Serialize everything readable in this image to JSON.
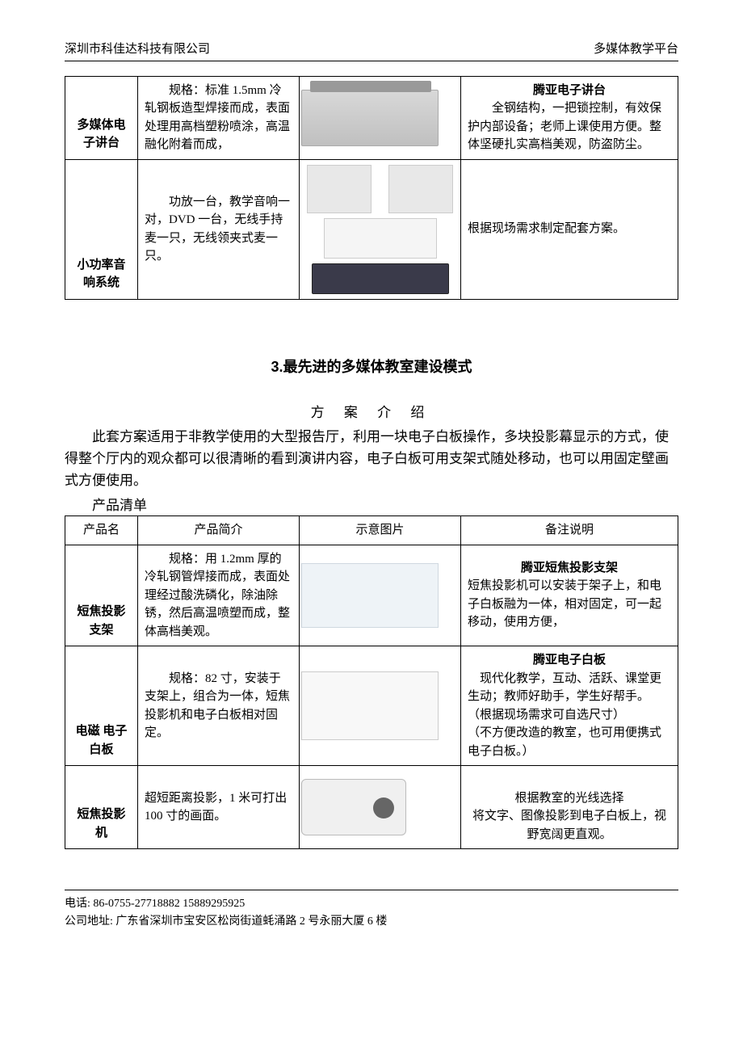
{
  "header": {
    "left": "深圳市科佳达科技有限公司",
    "right": "多媒体教学平台"
  },
  "table1": {
    "rows": [
      {
        "name": "多媒体电子讲台",
        "intro": "规格：标准 1.5mm 冷轧钢板造型焊接而成，表面处理用高档塑粉喷涂，高温融化附着而成，",
        "note_title": "腾亚电子讲台",
        "note_body": "全钢结构，一把锁控制，有效保护内部设备；老师上课使用方便。整体坚硬扎实高档美观，防盗防尘。"
      },
      {
        "name": "小功率音响系统",
        "intro": "功放一台，教学音响一对，DVD 一台，无线手持麦一只，无线领夹式麦一只。",
        "note_title": "",
        "note_body": "根据现场需求制定配套方案。"
      }
    ]
  },
  "section": {
    "title": "3.最先进的多媒体教室建设模式",
    "subtitle": "方 案 介 绍",
    "paragraph": "此套方案适用于非教学使用的大型报告厅，利用一块电子白板操作，多块投影幕显示的方式，使得整个厅内的观众都可以很清晰的看到演讲内容，电子白板可用支架式随处移动，也可以用固定壁画式方便使用。",
    "list_label": "产品清单"
  },
  "table2": {
    "headers": [
      "产品名",
      "产品简介",
      "示意图片",
      "备注说明"
    ],
    "rows": [
      {
        "name": "短焦投影支架",
        "intro": "规格：用 1.2mm 厚的冷轧钢管焊接而成，表面处理经过酸洗磷化，除油除锈，然后高温喷塑而成，整体高档美观。",
        "note_title": "腾亚短焦投影支架",
        "note_body": "短焦投影机可以安装于架子上，和电子白板融为一体，相对固定，可一起移动，使用方便，"
      },
      {
        "name": "电磁 电子白板",
        "intro": "规格：82 寸，安装于支架上，组合为一体，短焦投影机和电子白板相对固定。",
        "note_title": "腾亚电子白板",
        "note_body": "现代化教学，互动、活跃、课堂更生动；教师好助手，学生好帮手。\n（根据现场需求可自选尺寸）\n（不方便改造的教室，也可用便携式电子白板。）"
      },
      {
        "name": "短焦投影机",
        "intro": "超短距离投影，1 米可打出 100 寸的画面。",
        "note_title": "",
        "note_body": "根据教室的光线选择\n将文字、图像投影到电子白板上，视野宽阔更直观。",
        "note_center": true
      }
    ]
  },
  "footer": {
    "phone_label": "电话:",
    "phone": "86-0755-27718882  15889295925",
    "addr_label": "公司地址:",
    "addr": "广东省深圳市宝安区松岗街道蚝涌路 2 号永丽大厦 6 楼"
  }
}
